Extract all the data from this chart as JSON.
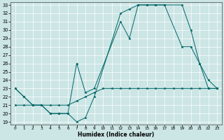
{
  "xlabel": "Humidex (Indice chaleur)",
  "xlim": [
    0,
    23
  ],
  "ylim": [
    19,
    33
  ],
  "yticks": [
    19,
    20,
    21,
    22,
    23,
    24,
    25,
    26,
    27,
    28,
    29,
    30,
    31,
    32,
    33
  ],
  "xticks": [
    0,
    1,
    2,
    3,
    4,
    5,
    6,
    7,
    8,
    9,
    10,
    11,
    12,
    13,
    14,
    15,
    16,
    17,
    18,
    19,
    20,
    21,
    22,
    23
  ],
  "bg_color": "#cce5e5",
  "line_color": "#006666",
  "grid_color": "#ffffff",
  "line1_x": [
    0,
    1,
    2,
    3,
    4,
    5,
    6,
    7,
    8,
    9,
    12,
    13,
    14,
    15,
    16,
    17,
    19,
    20,
    21,
    22,
    23
  ],
  "line1_y": [
    23,
    22,
    21,
    21,
    20,
    20,
    20,
    19,
    19.5,
    22,
    32,
    32.5,
    33,
    33,
    33,
    33,
    33,
    30,
    26,
    23,
    23
  ],
  "line2_x": [
    0,
    1,
    2,
    3,
    4,
    5,
    6,
    7,
    8,
    9,
    10,
    11,
    12,
    13,
    14,
    15,
    16,
    17,
    18,
    19,
    20,
    21,
    22,
    23
  ],
  "line2_y": [
    21,
    21,
    21,
    21,
    21,
    21,
    21,
    21.5,
    22,
    22.5,
    23,
    23,
    23,
    23,
    23,
    23,
    23,
    23,
    23,
    23,
    23,
    23,
    23,
    23
  ],
  "line3_x": [
    0,
    1,
    2,
    3,
    4,
    5,
    6,
    7,
    8,
    9,
    12,
    13,
    14,
    15,
    16,
    17,
    19,
    20,
    21,
    22,
    23
  ],
  "line3_y": [
    23,
    22,
    21,
    21,
    20,
    20,
    20,
    26,
    22.5,
    23,
    31,
    29,
    33,
    33,
    33,
    33,
    28,
    28,
    26,
    24,
    23
  ]
}
